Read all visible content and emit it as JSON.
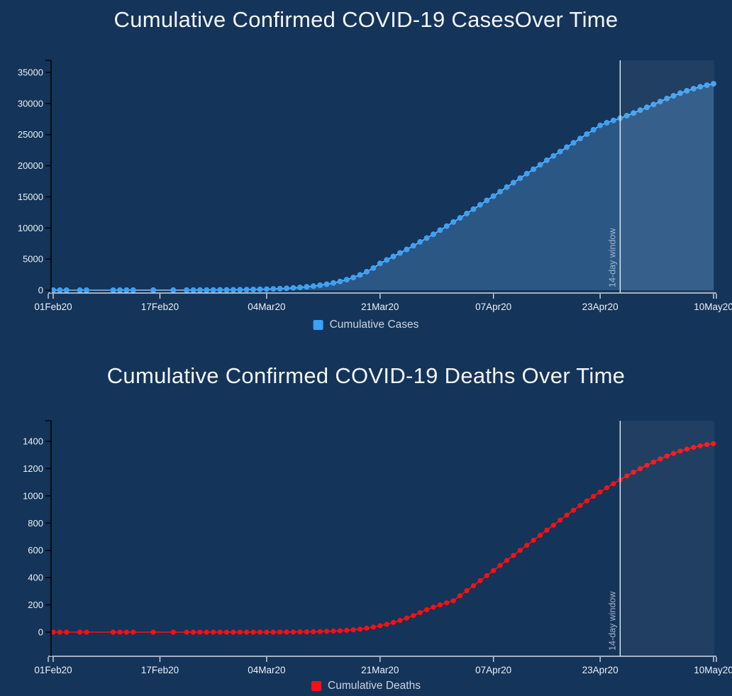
{
  "style": {
    "background": "#14345a",
    "cases_marker": "#3da1f5",
    "cases_line": "#8abbe4",
    "cases_fill": "#2b5785",
    "deaths_marker": "#f61111",
    "deaths_line": "#f61111",
    "window_band": "rgba(255,255,255,0.055)",
    "vline": "#e9edf3",
    "annotation_text": "#a9b6c9",
    "x_axis": "#d4d9e0",
    "y_axis": "#000000",
    "tick_label": "#ecf1f7",
    "title_text": "#f3f6fa",
    "legend_text": "#ccd4df"
  },
  "chart_data": [
    {
      "type": "line",
      "title": "Cumulative Confirmed COVID-19 CasesOver Time",
      "xlabel": "",
      "ylabel": "",
      "grid": false,
      "legend_position": "bottom-center",
      "y_ticks": [
        0,
        5000,
        10000,
        15000,
        20000,
        25000,
        30000,
        35000
      ],
      "ylim": [
        0,
        35000
      ],
      "x_start": "01Feb20",
      "x_tick_labels": [
        "01Feb20",
        "17Feb20",
        "04Mar20",
        "21Mar20",
        "07Apr20",
        "23Apr20",
        "10May20"
      ],
      "x_tick_days": [
        0,
        16,
        32,
        49,
        66,
        82,
        99
      ],
      "annotation": {
        "text": "14-day window",
        "day": 85
      },
      "band": {
        "start_day": 85,
        "end_day": 99
      },
      "series": [
        {
          "name": "Cumulative Cases",
          "fill": "tozeroy",
          "x_days": [
            0,
            1,
            2,
            4,
            5,
            9,
            10,
            11,
            12,
            15,
            18,
            20,
            21,
            22,
            23,
            24,
            25,
            26,
            27,
            28,
            29,
            30,
            31,
            32,
            33,
            34,
            35,
            36,
            37,
            38,
            39,
            40,
            41,
            42,
            43,
            44,
            45,
            46,
            47,
            48,
            49,
            50,
            51,
            52,
            53,
            54,
            55,
            56,
            57,
            58,
            59,
            60,
            61,
            62,
            63,
            64,
            65,
            66,
            67,
            68,
            69,
            70,
            71,
            72,
            73,
            74,
            75,
            76,
            77,
            78,
            79,
            80,
            81,
            82,
            83,
            84,
            85,
            86,
            87,
            88,
            89,
            90,
            91,
            92,
            93,
            94,
            95,
            96,
            97,
            98,
            99
          ],
          "values": [
            2,
            2,
            3,
            3,
            4,
            5,
            6,
            7,
            8,
            9,
            11,
            14,
            17,
            21,
            26,
            32,
            40,
            49,
            60,
            74,
            90,
            110,
            135,
            165,
            200,
            245,
            300,
            365,
            445,
            540,
            655,
            795,
            960,
            1160,
            1400,
            1690,
            2040,
            2460,
            2960,
            3560,
            4300,
            4860,
            5420,
            5980,
            6540,
            7150,
            7760,
            8370,
            8980,
            9640,
            10300,
            10960,
            11620,
            12320,
            13020,
            13720,
            14420,
            15120,
            15840,
            16560,
            17280,
            18000,
            18720,
            19440,
            20160,
            20880,
            21580,
            22280,
            22980,
            23680,
            24380,
            25080,
            25780,
            26480,
            26900,
            27280,
            27630,
            28030,
            28470,
            28920,
            29380,
            29850,
            30320,
            30790,
            31240,
            31660,
            32040,
            32380,
            32680,
            32940,
            33160
          ]
        }
      ]
    },
    {
      "type": "line",
      "title": "Cumulative Confirmed COVID-19 Deaths Over Time",
      "xlabel": "",
      "ylabel": "",
      "grid": false,
      "legend_position": "bottom-center",
      "y_ticks": [
        0,
        200,
        400,
        600,
        800,
        1000,
        1200,
        1400
      ],
      "ylim": [
        0,
        1400
      ],
      "x_start": "01Feb20",
      "x_tick_labels": [
        "01Feb20",
        "17Feb20",
        "04Mar20",
        "21Mar20",
        "07Apr20",
        "23Apr20",
        "10May20"
      ],
      "x_tick_days": [
        0,
        16,
        32,
        49,
        66,
        82,
        99
      ],
      "annotation": {
        "text": "14-day window",
        "day": 85
      },
      "band": {
        "start_day": 85,
        "end_day": 99
      },
      "series": [
        {
          "name": "Cumulative Deaths",
          "fill": "none",
          "x_days": [
            0,
            1,
            2,
            4,
            5,
            9,
            10,
            11,
            12,
            15,
            18,
            20,
            21,
            22,
            23,
            24,
            25,
            26,
            27,
            28,
            29,
            30,
            31,
            32,
            33,
            34,
            35,
            36,
            37,
            38,
            39,
            40,
            41,
            42,
            43,
            44,
            45,
            46,
            47,
            48,
            49,
            50,
            51,
            52,
            53,
            54,
            55,
            56,
            57,
            58,
            59,
            60,
            61,
            62,
            63,
            64,
            65,
            66,
            67,
            68,
            69,
            70,
            71,
            72,
            73,
            74,
            75,
            76,
            77,
            78,
            79,
            80,
            81,
            82,
            83,
            84,
            85,
            86,
            87,
            88,
            89,
            90,
            91,
            92,
            93,
            94,
            95,
            96,
            97,
            98,
            99
          ],
          "values": [
            0,
            0,
            0,
            0,
            0,
            0,
            0,
            0,
            0,
            0,
            0,
            0,
            0,
            0,
            0,
            0,
            0,
            0,
            0,
            0,
            0,
            0,
            0,
            0,
            0,
            1,
            1,
            1,
            2,
            2,
            3,
            4,
            6,
            8,
            10,
            13,
            17,
            22,
            29,
            37,
            47,
            58,
            71,
            86,
            103,
            122,
            143,
            165,
            183,
            200,
            215,
            230,
            267,
            304,
            341,
            378,
            415,
            452,
            489,
            526,
            563,
            600,
            637,
            674,
            711,
            748,
            785,
            822,
            858,
            894,
            929,
            963,
            996,
            1028,
            1059,
            1089,
            1118,
            1146,
            1173,
            1199,
            1224,
            1248,
            1271,
            1292,
            1311,
            1328,
            1343,
            1356,
            1367,
            1376,
            1383
          ]
        }
      ]
    }
  ]
}
